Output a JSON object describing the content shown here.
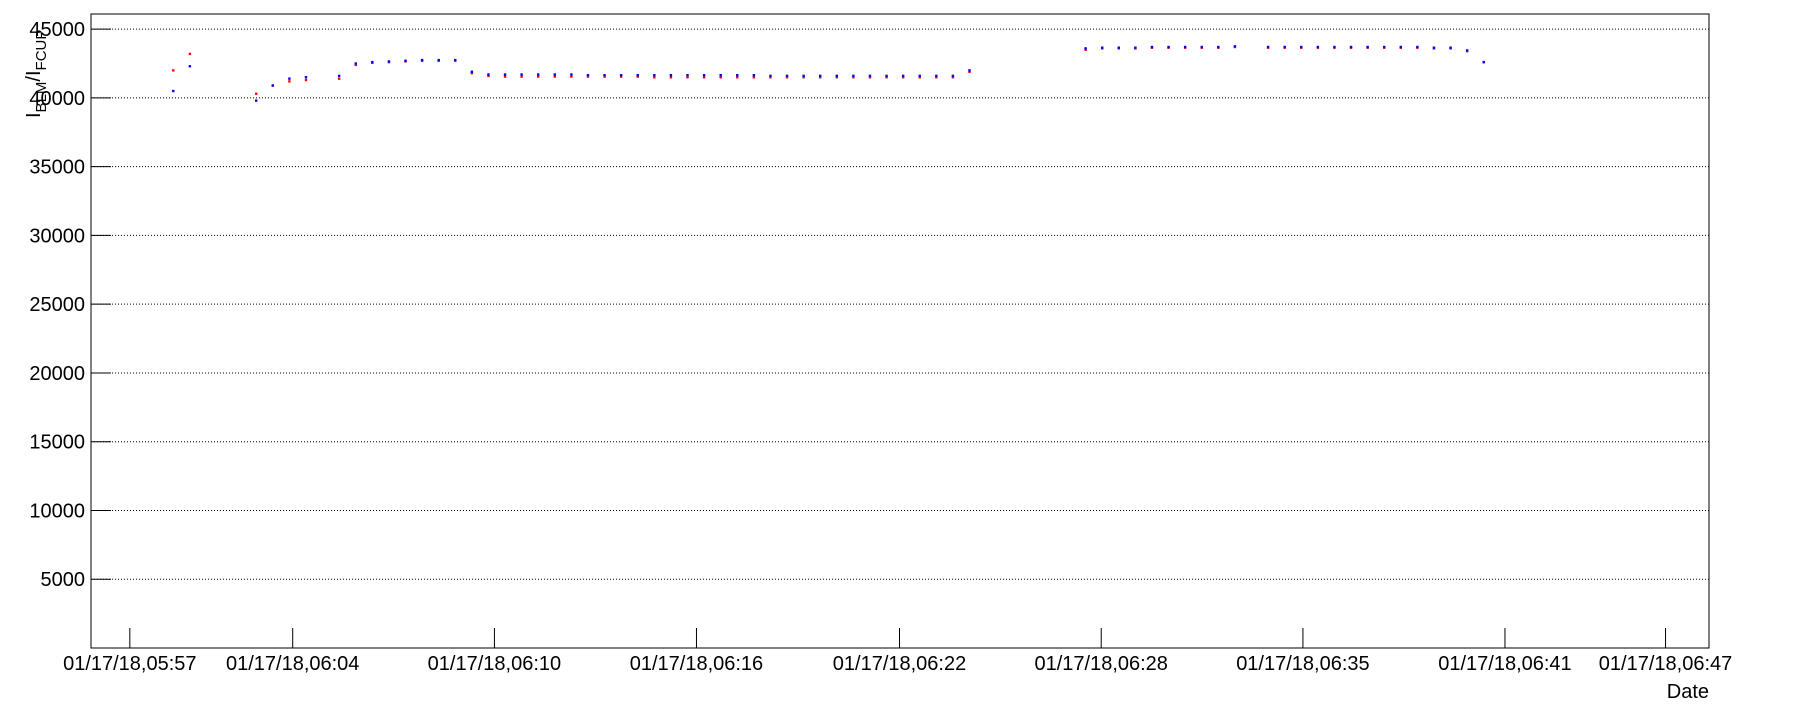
{
  "chart_data": {
    "type": "scatter",
    "ylabel": [
      "I",
      "BLM",
      "/I",
      "FCUP"
    ],
    "xlabel": "Date",
    "xlim": [
      358.52,
      407.29
    ],
    "xticks": [
      {
        "value": 359.69,
        "label": "01/17/18,05:57"
      },
      {
        "value": 364.6,
        "label": "01/17/18,06:04"
      },
      {
        "value": 370.68,
        "label": "01/17/18,06:10"
      },
      {
        "value": 376.77,
        "label": "01/17/18,06:16"
      },
      {
        "value": 382.89,
        "label": "01/17/18,06:22"
      },
      {
        "value": 388.97,
        "label": "01/17/18,06:28"
      },
      {
        "value": 395.05,
        "label": "01/17/18,06:35"
      },
      {
        "value": 401.14,
        "label": "01/17/18,06:41"
      },
      {
        "value": 405.98,
        "label": "01/17/18,06:47"
      }
    ],
    "ylim": [
      0,
      46100
    ],
    "yticks": [
      5000,
      10000,
      15000,
      20000,
      25000,
      30000,
      35000,
      40000,
      45000
    ],
    "grid": "y",
    "x": [
      361,
      361.5,
      363.5,
      364,
      364.5,
      365,
      366,
      366.5,
      367,
      367.5,
      368,
      368.5,
      369,
      369.5,
      370,
      370.5,
      371,
      371.5,
      372,
      372.5,
      373,
      373.5,
      374,
      374.5,
      375,
      375.5,
      376,
      376.5,
      377,
      377.5,
      378,
      378.5,
      379,
      379.5,
      380,
      380.5,
      381,
      381.5,
      382,
      382.5,
      383,
      383.5,
      384,
      384.5,
      385,
      388.5,
      389,
      389.5,
      390,
      390.5,
      391,
      391.5,
      392,
      392.5,
      393,
      394,
      394.5,
      395,
      395.5,
      396,
      396.5,
      397,
      397.5,
      398,
      398.5,
      399,
      399.5,
      400,
      400.5
    ],
    "series": [
      {
        "color": "#ff0000",
        "values": [
          42000,
          43200,
          40300,
          40900,
          41200,
          41300,
          41400,
          42400,
          42550,
          42600,
          42650,
          42700,
          42700,
          42700,
          41800,
          41600,
          41550,
          41550,
          41550,
          41550,
          41550,
          41550,
          41550,
          41550,
          41550,
          41500,
          41500,
          41500,
          41500,
          41500,
          41500,
          41500,
          41500,
          41500,
          41500,
          41500,
          41500,
          41500,
          41500,
          41500,
          41500,
          41500,
          41500,
          41500,
          41900,
          43500,
          43600,
          43600,
          43600,
          43650,
          43650,
          43650,
          43650,
          43650,
          43700,
          43650,
          43650,
          43650,
          43650,
          43650,
          43650,
          43650,
          43650,
          43650,
          43650,
          43600,
          43600,
          43400,
          42600
        ]
      },
      {
        "color": "#0000ff",
        "values": [
          40500,
          42300,
          39800,
          40900,
          41400,
          41500,
          41600,
          42500,
          42600,
          42650,
          42700,
          42750,
          42750,
          42750,
          41900,
          41700,
          41700,
          41700,
          41700,
          41700,
          41700,
          41650,
          41650,
          41650,
          41650,
          41650,
          41650,
          41650,
          41650,
          41650,
          41650,
          41650,
          41600,
          41600,
          41600,
          41600,
          41600,
          41600,
          41600,
          41600,
          41600,
          41600,
          41600,
          41600,
          42000,
          43600,
          43650,
          43650,
          43650,
          43700,
          43700,
          43700,
          43700,
          43700,
          43750,
          43700,
          43700,
          43700,
          43700,
          43700,
          43700,
          43700,
          43700,
          43700,
          43700,
          43650,
          43650,
          43450,
          42600
        ]
      }
    ]
  }
}
